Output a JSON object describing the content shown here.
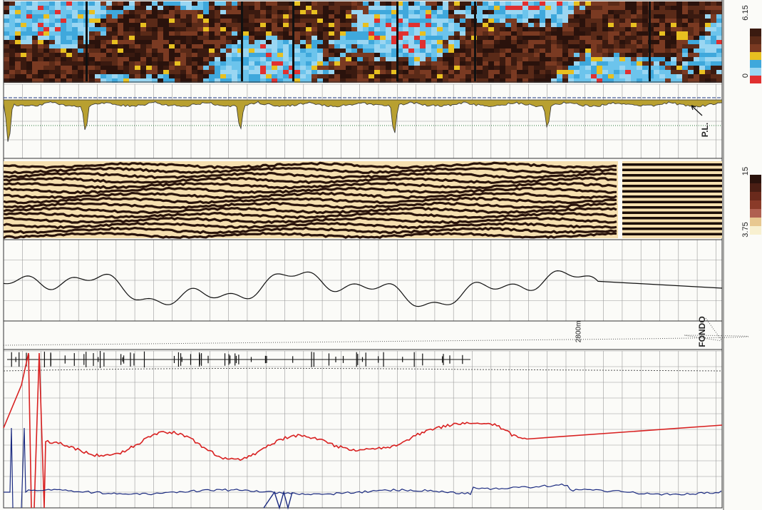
{
  "top_scale": {
    "max": "6.15",
    "min": "0"
  },
  "track2": {
    "label": "P.L."
  },
  "mid_scale": {
    "max": "15",
    "min": "3.75"
  },
  "track5": {
    "depth": "2800m",
    "label": "FONDO"
  }
}
